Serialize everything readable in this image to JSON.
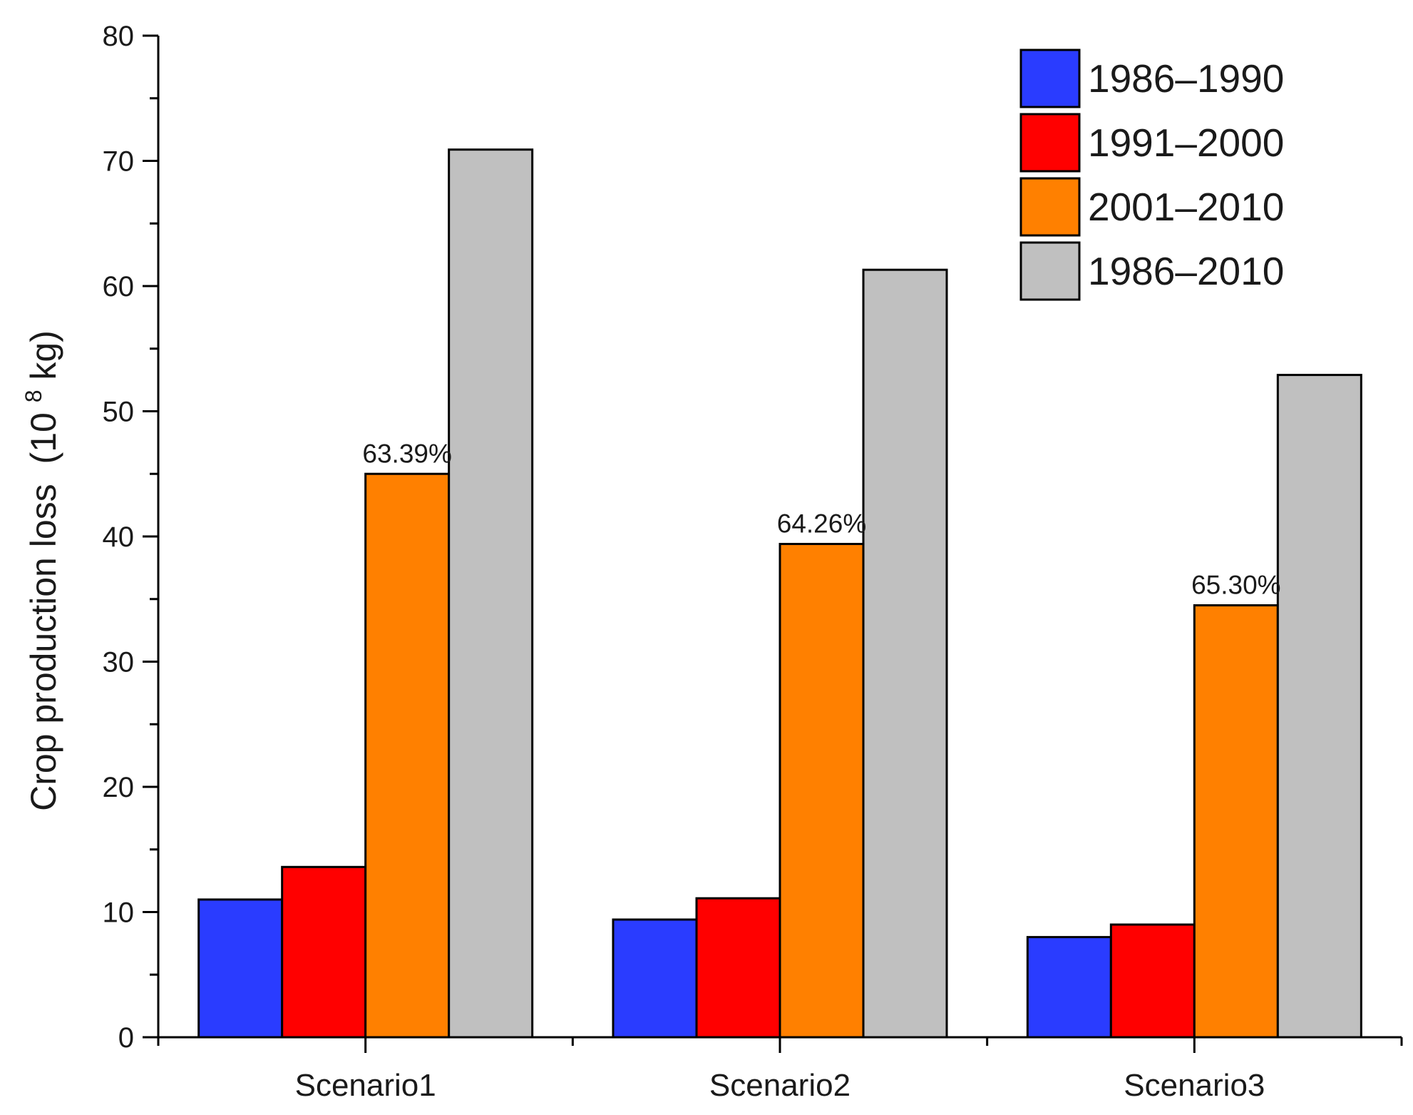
{
  "chart_data": {
    "type": "bar",
    "title": "",
    "xlabel": "",
    "ylabel": "Crop production loss",
    "ylabel_units": "(10",
    "ylabel_units_exponent": "8",
    "ylabel_units_suffix": "kg)",
    "ylim": [
      0,
      80
    ],
    "yticks": [
      "0",
      "10",
      "20",
      "30",
      "40",
      "50",
      "60",
      "70",
      "80"
    ],
    "categories": [
      "Scenario1",
      "Scenario2",
      "Scenario3"
    ],
    "series": [
      {
        "name": "1986–1990",
        "color": "#2a3cff",
        "values": [
          11.0,
          9.4,
          8.0
        ]
      },
      {
        "name": "1991–2000",
        "color": "#ff0000",
        "values": [
          13.6,
          11.1,
          9.0
        ]
      },
      {
        "name": "2001–2010",
        "color": "#ff8000",
        "values": [
          45.0,
          39.4,
          34.5
        ]
      },
      {
        "name": "1986–2010",
        "color": "#c0c0c0",
        "values": [
          70.9,
          61.3,
          52.9
        ]
      }
    ],
    "annotations": [
      {
        "category": "Scenario1",
        "series": "2001–2010",
        "text": "63.39%"
      },
      {
        "category": "Scenario2",
        "series": "2001–2010",
        "text": "64.26%"
      },
      {
        "category": "Scenario3",
        "series": "2001–2010",
        "text": "65.30%"
      }
    ],
    "legend_position": "top-right",
    "grid": false
  }
}
